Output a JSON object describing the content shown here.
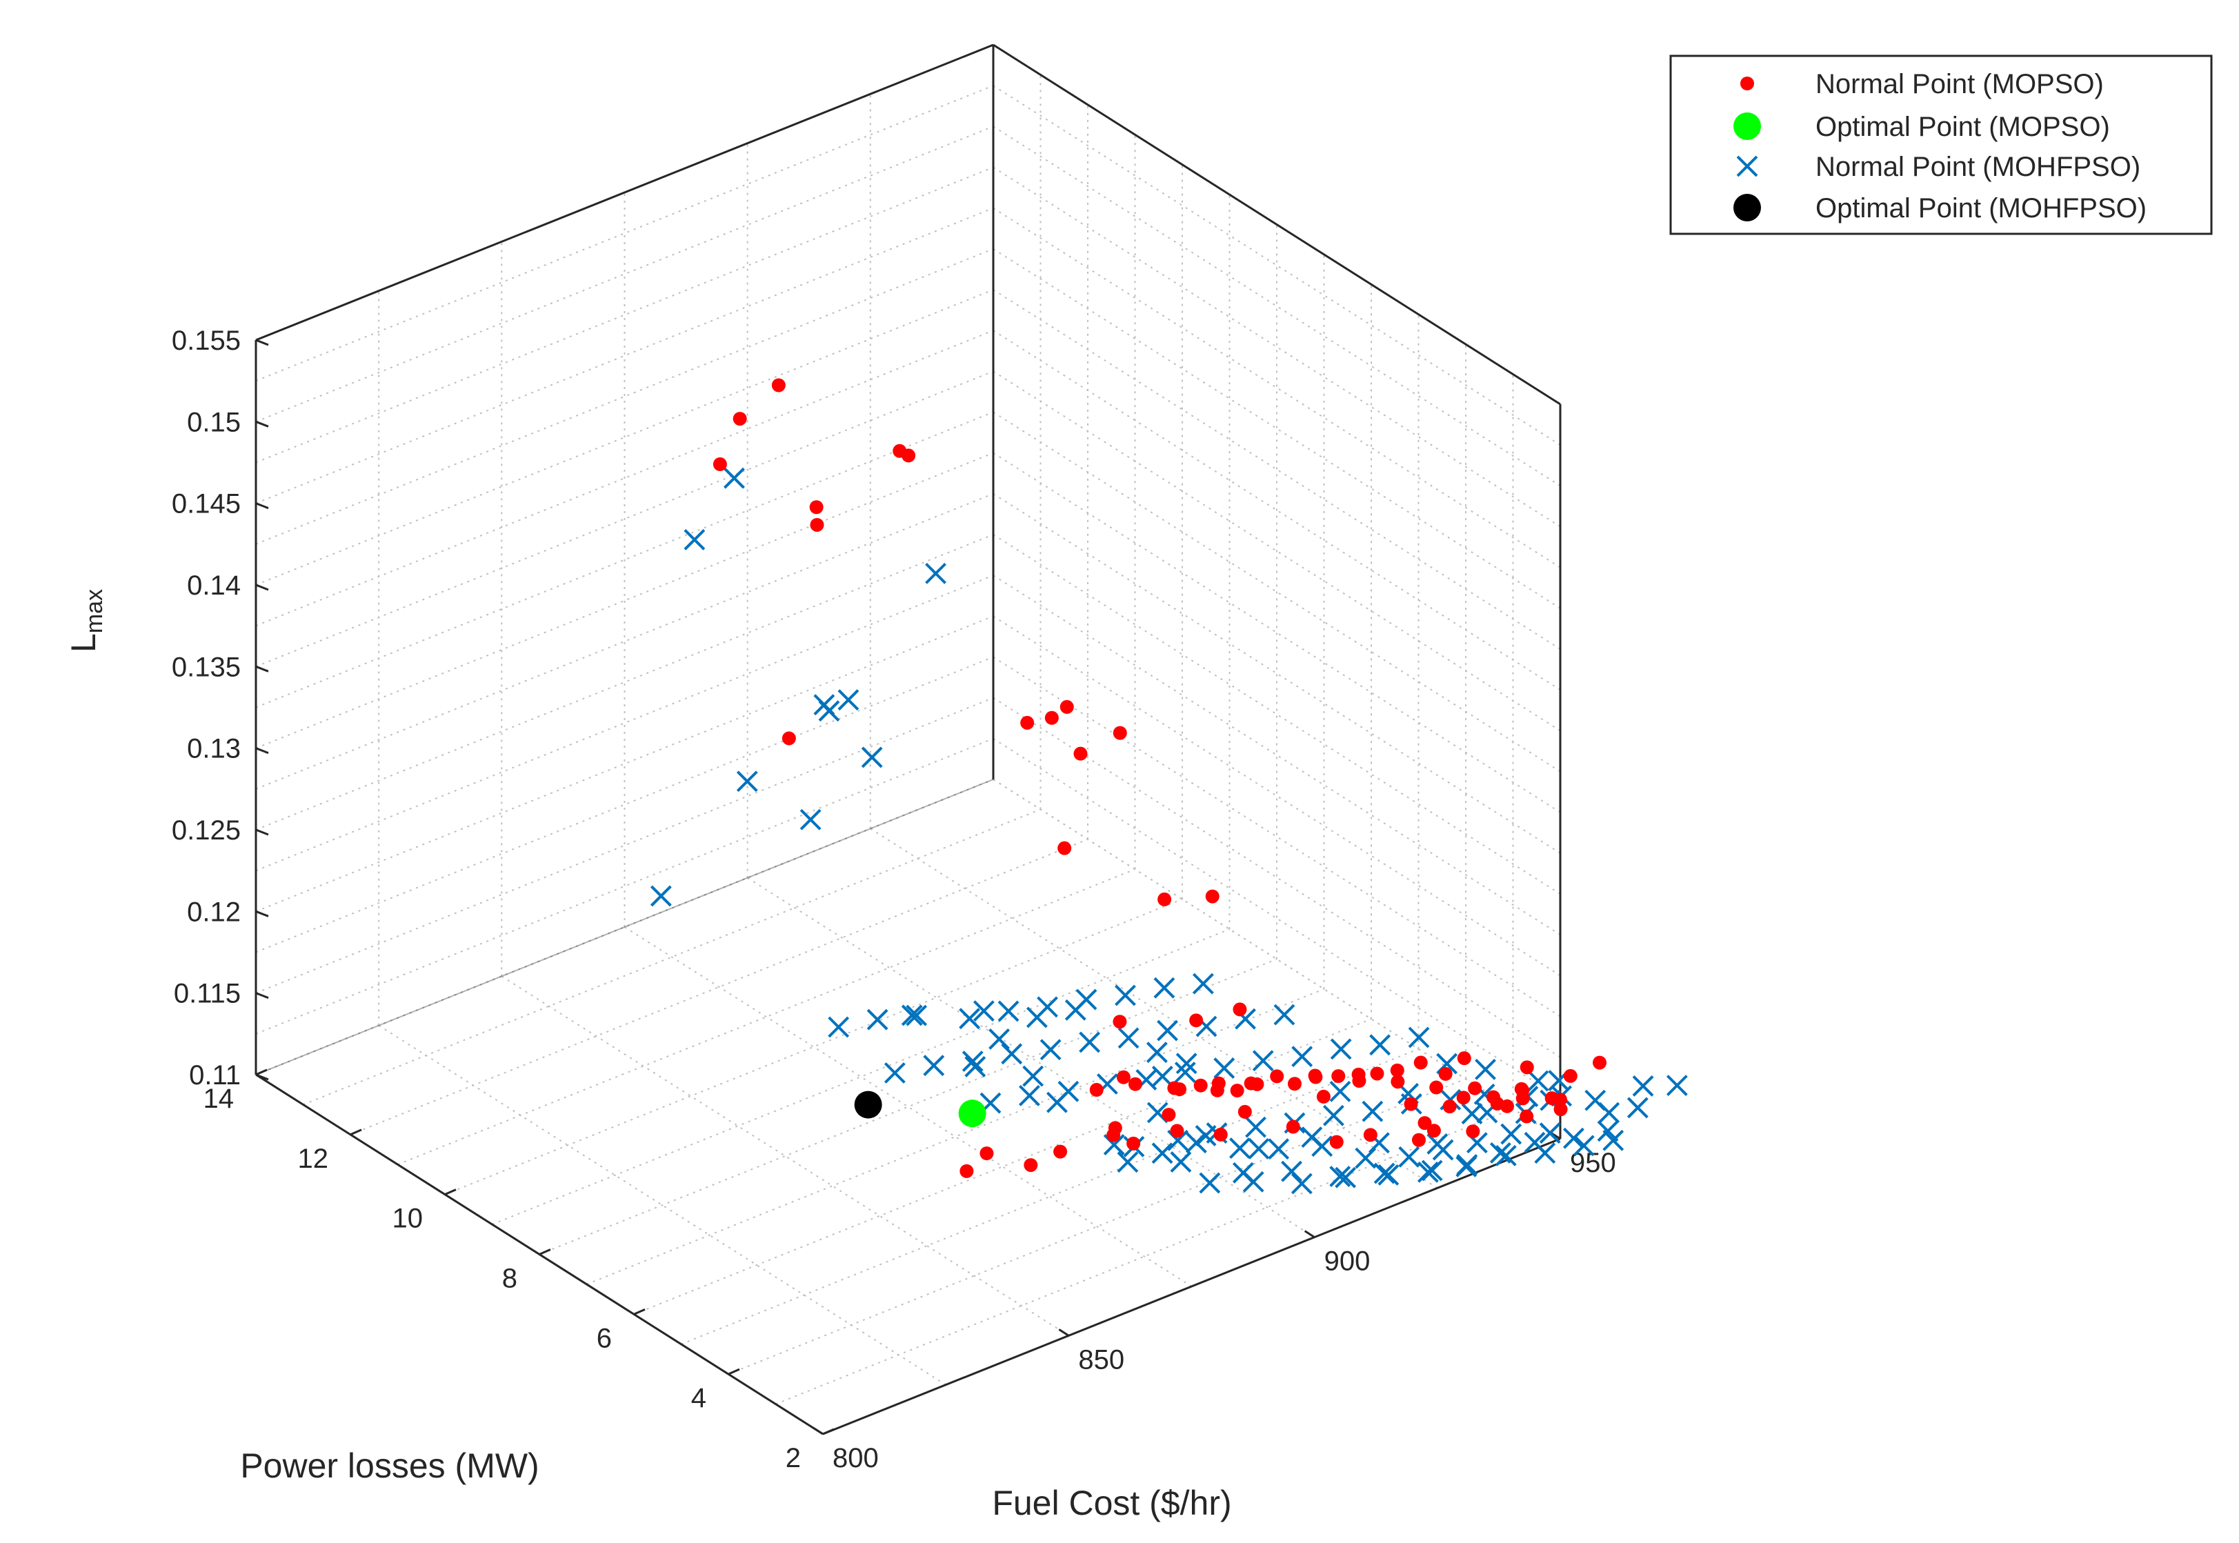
{
  "chart_data": {
    "type": "scatter3d",
    "xlabel": "Fuel Cost ($/hr)",
    "ylabel": "Power losses (MW)",
    "zlabel": {
      "base": "L",
      "sub": "max"
    },
    "xlim": [
      800,
      950
    ],
    "ylim": [
      2,
      14
    ],
    "zlim": [
      0.11,
      0.155
    ],
    "xticks": [
      "800",
      "850",
      "900",
      "950"
    ],
    "yticks": [
      "2",
      "4",
      "6",
      "8",
      "10",
      "12",
      "14"
    ],
    "zticks": [
      "0.11",
      "0.115",
      "0.12",
      "0.125",
      "0.13",
      "0.135",
      "0.14",
      "0.145",
      "0.15",
      "0.155"
    ],
    "grid": true,
    "legend_position": "top-right",
    "series": [
      {
        "name": "Normal Point (MOPSO)",
        "marker": "dot",
        "color": "#ff0000",
        "points": [
          [
            880,
            12.5,
            0.1405
          ],
          [
            885,
            12.6,
            0.1425
          ],
          [
            890,
            12.3,
            0.1445
          ],
          [
            902,
            10.8,
            0.1415
          ],
          [
            905,
            11.3,
            0.1405
          ],
          [
            890,
            11.5,
            0.1385
          ],
          [
            893,
            11.8,
            0.1365
          ],
          [
            870,
            10.0,
            0.1295
          ],
          [
            905,
            8.6,
            0.1288
          ],
          [
            910,
            8.6,
            0.1285
          ],
          [
            912,
            8.2,
            0.1268
          ],
          [
            915,
            8.8,
            0.1282
          ],
          [
            921,
            8.3,
            0.1268
          ],
          [
            902,
            7.5,
            0.1235
          ],
          [
            906,
            5.8,
            0.123
          ],
          [
            910,
            5.2,
            0.1238
          ],
          [
            899,
            4.4,
            0.119
          ],
          [
            905,
            4.1,
            0.1195
          ],
          [
            895,
            5.6,
            0.1172
          ],
          [
            890,
            5.0,
            0.1155
          ],
          [
            898,
            4.2,
            0.1155
          ],
          [
            860,
            5.2,
            0.113
          ],
          [
            866,
            5.4,
            0.113
          ],
          [
            874,
            5.3,
            0.1115
          ],
          [
            880,
            5.3,
            0.1116
          ],
          [
            886,
            4.8,
            0.1128
          ],
          [
            892,
            5.0,
            0.1112
          ],
          [
            898,
            4.7,
            0.1118
          ],
          [
            904,
            4.4,
            0.1114
          ],
          [
            907,
            4.2,
            0.1128
          ],
          [
            912,
            3.7,
            0.1122
          ],
          [
            917,
            3.3,
            0.1114
          ],
          [
            921,
            3.0,
            0.1119
          ],
          [
            927,
            2.6,
            0.1116
          ],
          [
            932,
            2.8,
            0.1112
          ],
          [
            938,
            2.8,
            0.1125
          ],
          [
            942,
            2.5,
            0.1122
          ],
          [
            945,
            2.3,
            0.1131
          ],
          [
            950,
            2.0,
            0.1124
          ],
          [
            949,
            2.6,
            0.1134
          ],
          [
            954,
            2.2,
            0.113
          ],
          [
            958,
            2.0,
            0.1137
          ],
          [
            942,
            3.2,
            0.1137
          ],
          [
            937,
            3.6,
            0.1133
          ],
          [
            931,
            3.9,
            0.1128
          ],
          [
            926,
            4.2,
            0.1127
          ],
          [
            920,
            4.5,
            0.1124
          ],
          [
            914,
            4.8,
            0.1126
          ],
          [
            911,
            5.2,
            0.1118
          ],
          [
            916,
            5.3,
            0.111
          ],
          [
            921,
            5.4,
            0.1106
          ],
          [
            926,
            5.5,
            0.1103
          ],
          [
            931,
            5.2,
            0.1102
          ],
          [
            936,
            4.8,
            0.1101
          ],
          [
            940,
            4.4,
            0.1103
          ],
          [
            944,
            4.0,
            0.1102
          ],
          [
            948,
            3.6,
            0.1104
          ],
          [
            952,
            3.0,
            0.1104
          ],
          [
            955,
            2.7,
            0.1106
          ],
          [
            946,
            3.0,
            0.1112
          ],
          [
            952,
            2.2,
            0.1112
          ],
          [
            928,
            4.9,
            0.1112
          ],
          [
            933,
            4.5,
            0.1114
          ],
          [
            938,
            4.2,
            0.1116
          ],
          [
            943,
            3.7,
            0.1117
          ],
          [
            933,
            3.1,
            0.111
          ],
          [
            938,
            2.6,
            0.1108
          ],
          [
            908,
            5.8,
            0.1112
          ],
          [
            902,
            6.0,
            0.1118
          ],
          [
            897,
            6.3,
            0.1115
          ],
          [
            911,
            6.0,
            0.1104
          ],
          [
            918,
            5.9,
            0.1101
          ],
          [
            944,
            2.5,
            0.1118
          ],
          [
            950,
            2.8,
            0.1115
          ],
          [
            896,
            5.8,
            0.1102
          ],
          [
            904,
            5.5,
            0.1106
          ],
          [
            940,
            3.3,
            0.1108
          ],
          [
            935,
            3.6,
            0.111
          ],
          [
            947,
            2.4,
            0.111
          ],
          [
            923,
            4.2,
            0.1118
          ]
        ]
      },
      {
        "name": "Optimal Point (MOPSO)",
        "marker": "big-dot",
        "color": "#00ff00",
        "points": [
          [
            865,
            5.6,
            0.1152
          ]
        ]
      },
      {
        "name": "Normal Point (MOHFPSO)",
        "marker": "x",
        "color": "#0072bd",
        "points": [
          [
            880,
            12.2,
            0.1402
          ],
          [
            870,
            12.0,
            0.138
          ],
          [
            896,
            9.6,
            0.1372
          ],
          [
            881,
            10.4,
            0.1295
          ],
          [
            884,
            10.2,
            0.1298
          ],
          [
            882,
            10.4,
            0.129
          ],
          [
            884,
            9.7,
            0.1272
          ],
          [
            874,
            11.3,
            0.124
          ],
          [
            884,
            11.0,
            0.121
          ],
          [
            868,
            12.5,
            0.1155
          ],
          [
            876,
            6.5,
            0.1185
          ],
          [
            882,
            6.0,
            0.1183
          ],
          [
            886,
            5.6,
            0.119
          ],
          [
            892,
            4.5,
            0.1177
          ],
          [
            871,
            7.5,
            0.117
          ],
          [
            882,
            6.8,
            0.1155
          ],
          [
            880,
            7.1,
            0.1135
          ],
          [
            886,
            6.5,
            0.1133
          ],
          [
            896,
            4.8,
            0.1152
          ],
          [
            898,
            4.5,
            0.1163
          ],
          [
            911,
            2.6,
            0.1165
          ],
          [
            921,
            2.2,
            0.1159
          ],
          [
            942,
            1.2,
            0.116
          ],
          [
            888,
            6.2,
            0.112
          ],
          [
            895,
            4.8,
            0.1131
          ],
          [
            900,
            4.3,
            0.112
          ],
          [
            905,
            3.7,
            0.1117
          ],
          [
            911,
            3.2,
            0.1126
          ],
          [
            917,
            2.4,
            0.113
          ],
          [
            925,
            2.0,
            0.1127
          ],
          [
            933,
            2.1,
            0.1134
          ],
          [
            938,
            2.3,
            0.1125
          ],
          [
            943,
            2.0,
            0.1124
          ],
          [
            948,
            2.0,
            0.1126
          ],
          [
            890,
            5.2,
            0.111
          ],
          [
            895,
            4.7,
            0.1108
          ],
          [
            900,
            4.5,
            0.1112
          ],
          [
            905,
            4.1,
            0.111
          ],
          [
            910,
            3.8,
            0.1109
          ],
          [
            915,
            3.4,
            0.1112
          ],
          [
            920,
            3.0,
            0.1106
          ],
          [
            925,
            2.6,
            0.1108
          ],
          [
            930,
            2.4,
            0.111
          ],
          [
            935,
            2.2,
            0.1112
          ],
          [
            940,
            2.0,
            0.1115
          ],
          [
            946,
            1.8,
            0.1112
          ],
          [
            895,
            5.3,
            0.1101
          ],
          [
            902,
            5.1,
            0.11
          ],
          [
            908,
            4.9,
            0.1101
          ],
          [
            914,
            4.7,
            0.1101
          ],
          [
            920,
            4.5,
            0.11
          ],
          [
            926,
            4.3,
            0.1101
          ],
          [
            932,
            4.1,
            0.11
          ],
          [
            938,
            3.9,
            0.1101
          ],
          [
            944,
            3.7,
            0.11
          ],
          [
            949,
            3.5,
            0.1101
          ],
          [
            886,
            7.4,
            0.11
          ],
          [
            892,
            7.2,
            0.1101
          ],
          [
            898,
            7.0,
            0.11
          ],
          [
            904,
            6.8,
            0.1101
          ],
          [
            910,
            6.6,
            0.11
          ],
          [
            916,
            6.4,
            0.1101
          ],
          [
            922,
            6.2,
            0.11
          ],
          [
            928,
            6.0,
            0.1101
          ],
          [
            934,
            5.8,
            0.11
          ],
          [
            940,
            5.6,
            0.1101
          ],
          [
            946,
            5.4,
            0.11
          ],
          [
            952,
            5.2,
            0.1101
          ],
          [
            880,
            8.8,
            0.11
          ],
          [
            886,
            8.6,
            0.1101
          ],
          [
            892,
            8.4,
            0.11
          ],
          [
            898,
            8.2,
            0.1101
          ],
          [
            904,
            8.0,
            0.11
          ],
          [
            910,
            7.8,
            0.1101
          ],
          [
            916,
            7.6,
            0.11
          ],
          [
            922,
            7.4,
            0.1101
          ],
          [
            928,
            7.2,
            0.11
          ],
          [
            934,
            7.0,
            0.1101
          ],
          [
            940,
            6.8,
            0.11
          ],
          [
            900,
            9.3,
            0.11
          ],
          [
            906,
            9.1,
            0.1101
          ],
          [
            912,
            8.9,
            0.11
          ],
          [
            918,
            8.7,
            0.1101
          ],
          [
            924,
            8.5,
            0.11
          ],
          [
            930,
            8.3,
            0.1101
          ],
          [
            936,
            8.1,
            0.11
          ],
          [
            894,
            9.8,
            0.11
          ],
          [
            888,
            10.0,
            0.1101
          ],
          [
            882,
            10.2,
            0.11
          ],
          [
            896,
            3.8,
            0.1105
          ],
          [
            902,
            3.5,
            0.1104
          ],
          [
            908,
            3.1,
            0.1103
          ],
          [
            914,
            2.8,
            0.1105
          ],
          [
            920,
            2.6,
            0.1104
          ],
          [
            926,
            2.3,
            0.1103
          ],
          [
            932,
            2.1,
            0.1104
          ],
          [
            938,
            1.9,
            0.1106
          ],
          [
            944,
            1.7,
            0.1104
          ],
          [
            950,
            1.5,
            0.1105
          ],
          [
            955,
            1.4,
            0.1104
          ],
          [
            956,
            2.6,
            0.1108
          ],
          [
            960,
            2.3,
            0.1106
          ],
          [
            958,
            1.8,
            0.111
          ],
          [
            953,
            3.0,
            0.1104
          ],
          [
            958,
            3.3,
            0.1102
          ],
          [
            954,
            4.0,
            0.1101
          ],
          [
            950,
            4.4,
            0.1102
          ],
          [
            887,
            4.6,
            0.1114
          ],
          [
            893,
            4.1,
            0.1116
          ],
          [
            898,
            3.3,
            0.1118
          ],
          [
            904,
            2.9,
            0.1119
          ],
          [
            910,
            2.5,
            0.1116
          ],
          [
            916,
            2.1,
            0.1117
          ],
          [
            922,
            1.8,
            0.1118
          ],
          [
            928,
            1.7,
            0.1115
          ],
          [
            934,
            1.6,
            0.1118
          ],
          [
            940,
            1.5,
            0.1119
          ],
          [
            946,
            1.3,
            0.1118
          ],
          [
            952,
            1.2,
            0.1117
          ],
          [
            960,
            1.4,
            0.1118
          ],
          [
            963,
            1.6,
            0.1124
          ],
          [
            968,
            1.4,
            0.1122
          ]
        ]
      },
      {
        "name": "Optimal Point (MOHFPSO)",
        "marker": "big-dot",
        "color": "#000000",
        "points": [
          [
            864,
            7.7,
            0.112
          ]
        ]
      }
    ]
  }
}
